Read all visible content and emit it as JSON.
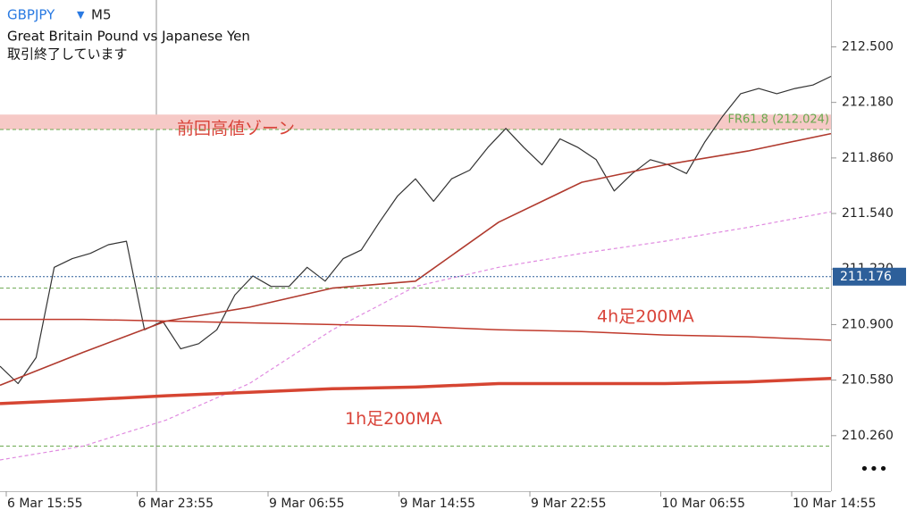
{
  "chart_data": {
    "type": "line",
    "symbol": "GBPJPY",
    "timeframe": "M5",
    "subtitle": "Great Britain Pound vs Japanese Yen",
    "status": "取引終了しています",
    "ylim": [
      209.94,
      212.77
    ],
    "yticks": [
      {
        "value": 212.5,
        "label": "212.500"
      },
      {
        "value": 212.18,
        "label": "212.180"
      },
      {
        "value": 211.86,
        "label": "211.860"
      },
      {
        "value": 211.54,
        "label": "211.540"
      },
      {
        "value": 211.22,
        "label": "211.220"
      },
      {
        "value": 210.9,
        "label": "210.900"
      },
      {
        "value": 210.58,
        "label": "210.580"
      },
      {
        "value": 210.26,
        "label": "210.260"
      }
    ],
    "xticks": [
      "6 Mar 15:55",
      "6 Mar 23:55",
      "9 Mar 06:55",
      "9 Mar 14:55",
      "9 Mar 22:55",
      "10 Mar 06:55",
      "10 Mar 14:55"
    ],
    "series": [
      {
        "color": "#333333",
        "width": 1.2,
        "values": [
          210.66,
          210.56,
          210.71,
          211.23,
          211.28,
          211.31,
          211.36,
          211.38,
          210.87,
          210.92,
          210.76,
          210.79,
          210.87,
          211.07,
          211.18,
          211.12,
          211.12,
          211.23,
          211.15,
          211.28,
          211.33,
          211.49,
          211.64,
          211.74,
          211.61,
          211.74,
          211.79,
          211.92,
          212.03,
          211.92,
          211.82,
          211.97,
          211.92,
          211.85,
          211.67,
          211.77,
          211.85,
          211.82,
          211.77,
          211.95,
          212.1,
          212.23,
          212.26,
          212.23,
          212.26,
          212.28,
          212.33
        ]
      },
      {
        "color": "#b03a2e",
        "width": 1.6,
        "values": [
          210.55,
          210.74,
          210.92,
          211.0,
          211.11,
          211.15,
          211.49,
          211.72,
          211.82,
          211.9,
          212.0
        ]
      },
      {
        "color": "#e08ae0",
        "width": 1.2,
        "dashed": true,
        "values": [
          210.12,
          210.2,
          210.35,
          210.56,
          210.87,
          211.12,
          211.23,
          211.31,
          211.38,
          211.46,
          211.55
        ]
      },
      {
        "name": "4h足200MA",
        "color": "#c0392b",
        "width": 1.5,
        "values": [
          210.93,
          210.93,
          210.92,
          210.91,
          210.9,
          210.89,
          210.87,
          210.86,
          210.84,
          210.83,
          210.81
        ]
      },
      {
        "name": "1h足200MA",
        "color": "#d64532",
        "width": 3.5,
        "values": [
          210.445,
          210.466,
          210.49,
          210.51,
          210.53,
          210.54,
          210.56,
          210.56,
          210.56,
          210.57,
          210.59
        ]
      }
    ],
    "zone": {
      "range": [
        212.024,
        212.11
      ],
      "label": "前回高値ゾーン",
      "color": "#f6c9c6"
    },
    "levels": [
      {
        "value": 212.024,
        "label": "FR61.8 (212.024)",
        "color": "#6aa84f"
      },
      {
        "value": 211.11,
        "color": "#6aa84f"
      },
      {
        "value": 210.2,
        "color": "#6aa84f"
      }
    ],
    "last_price": {
      "value": 211.176,
      "color": "#2d5f9a"
    }
  }
}
